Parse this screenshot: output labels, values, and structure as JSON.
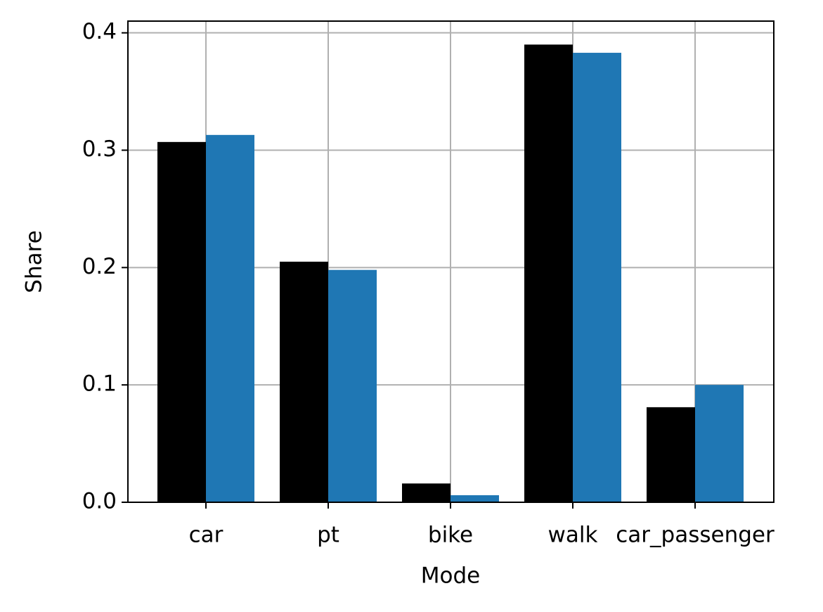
{
  "chart_data": {
    "type": "bar",
    "xlabel": "Mode",
    "ylabel": "Share",
    "categories": [
      "car",
      "pt",
      "bike",
      "walk",
      "car_passenger"
    ],
    "series": [
      {
        "color": "#000000",
        "values": [
          0.307,
          0.205,
          0.016,
          0.39,
          0.081
        ]
      },
      {
        "color": "#1f77b4",
        "values": [
          0.313,
          0.198,
          0.006,
          0.383,
          0.1
        ]
      }
    ],
    "ylim": [
      0,
      0.41
    ],
    "yticks": [
      {
        "value": 0,
        "label": "0.0"
      },
      0.1,
      0.2,
      0.3,
      0.4
    ],
    "grid": true
  }
}
